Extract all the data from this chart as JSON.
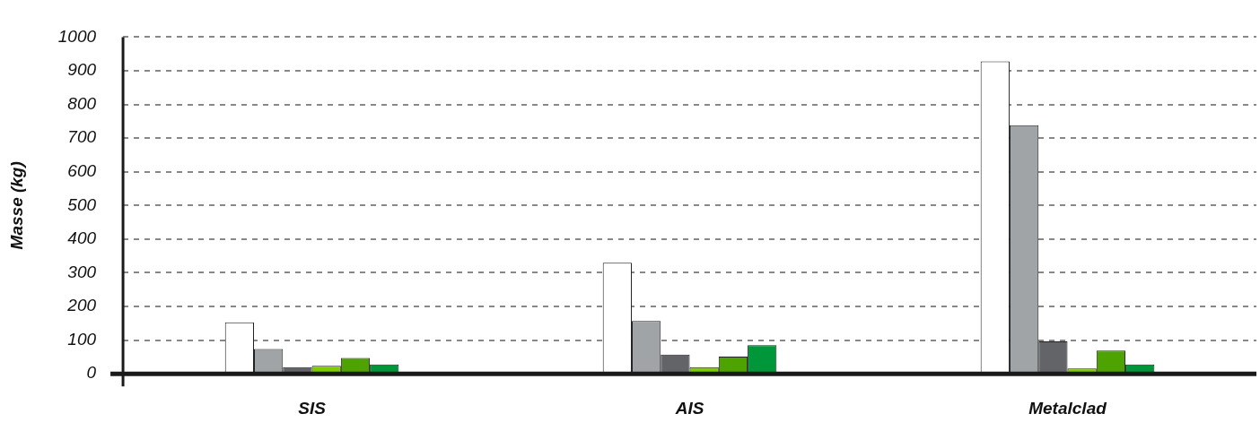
{
  "chart_data": {
    "type": "bar",
    "ylabel": "Masse (kg)",
    "categories": [
      "SIS",
      "AIS",
      "Metalclad"
    ],
    "series": [
      {
        "color": "#ffffff",
        "values": [
          153,
          330,
          928
        ]
      },
      {
        "color": "#a0a4a6",
        "values": [
          74,
          157,
          738
        ]
      },
      {
        "color": "#626468",
        "values": [
          20,
          57,
          96
        ]
      },
      {
        "color": "#7fcc00",
        "values": [
          24,
          20,
          16
        ]
      },
      {
        "color": "#4fa300",
        "values": [
          47,
          51,
          69
        ]
      },
      {
        "color": "#00963a",
        "values": [
          28,
          85,
          28
        ]
      }
    ],
    "ylim": [
      0,
      1000
    ],
    "yticks": [
      0,
      100,
      200,
      300,
      400,
      500,
      600,
      700,
      800,
      900,
      1000
    ],
    "grid": "y",
    "legend": false
  }
}
